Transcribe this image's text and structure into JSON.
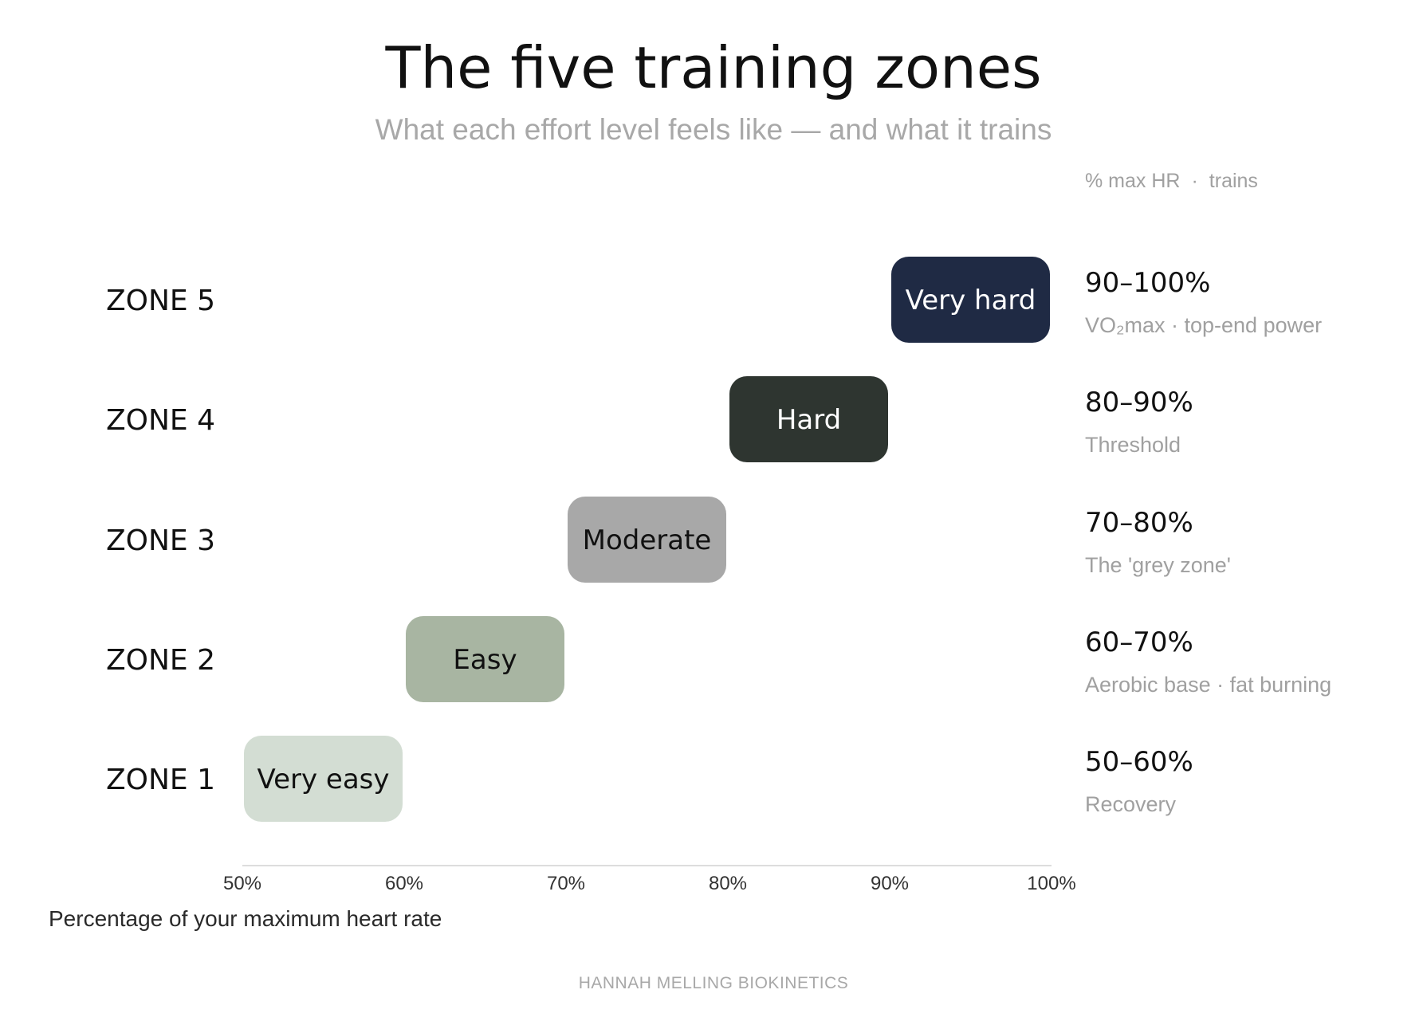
{
  "chart_data": {
    "type": "bar",
    "orientation": "horizontal-range",
    "title": "The five training zones",
    "subtitle": "What each effort level feels like — and what it trains",
    "column_header": {
      "left": "% max HR",
      "separator": "·",
      "right": "trains"
    },
    "xlabel": "Percentage of your maximum heart rate",
    "xlim": [
      50,
      100
    ],
    "x_ticks": [
      "50%",
      "60%",
      "70%",
      "80%",
      "90%",
      "100%"
    ],
    "x_tick_values": [
      50,
      60,
      70,
      80,
      90,
      100
    ],
    "zones": [
      {
        "zone": "ZONE 5",
        "effort": "Very hard",
        "start": 90,
        "end": 100,
        "range": "90–100%",
        "trains": "VO₂max · top-end power",
        "color": "#1f2a44",
        "text_color": "#ffffff"
      },
      {
        "zone": "ZONE 4",
        "effort": "Hard",
        "start": 80,
        "end": 90,
        "range": "80–90%",
        "trains": "Threshold",
        "color": "#2e3530",
        "text_color": "#ffffff"
      },
      {
        "zone": "ZONE 3",
        "effort": "Moderate",
        "start": 70,
        "end": 80,
        "range": "70–80%",
        "trains": "The 'grey zone'",
        "color": "#a8a8a8",
        "text_color": "#111111"
      },
      {
        "zone": "ZONE 2",
        "effort": "Easy",
        "start": 60,
        "end": 70,
        "range": "60–70%",
        "trains": "Aerobic base · fat burning",
        "color": "#a8b5a2",
        "text_color": "#111111"
      },
      {
        "zone": "ZONE 1",
        "effort": "Very easy",
        "start": 50,
        "end": 60,
        "range": "50–60%",
        "trains": "Recovery",
        "color": "#d3ddd3",
        "text_color": "#111111"
      }
    ],
    "axis_color": "#dddddd"
  },
  "credit": "HANNAH MELLING BIOKINETICS"
}
